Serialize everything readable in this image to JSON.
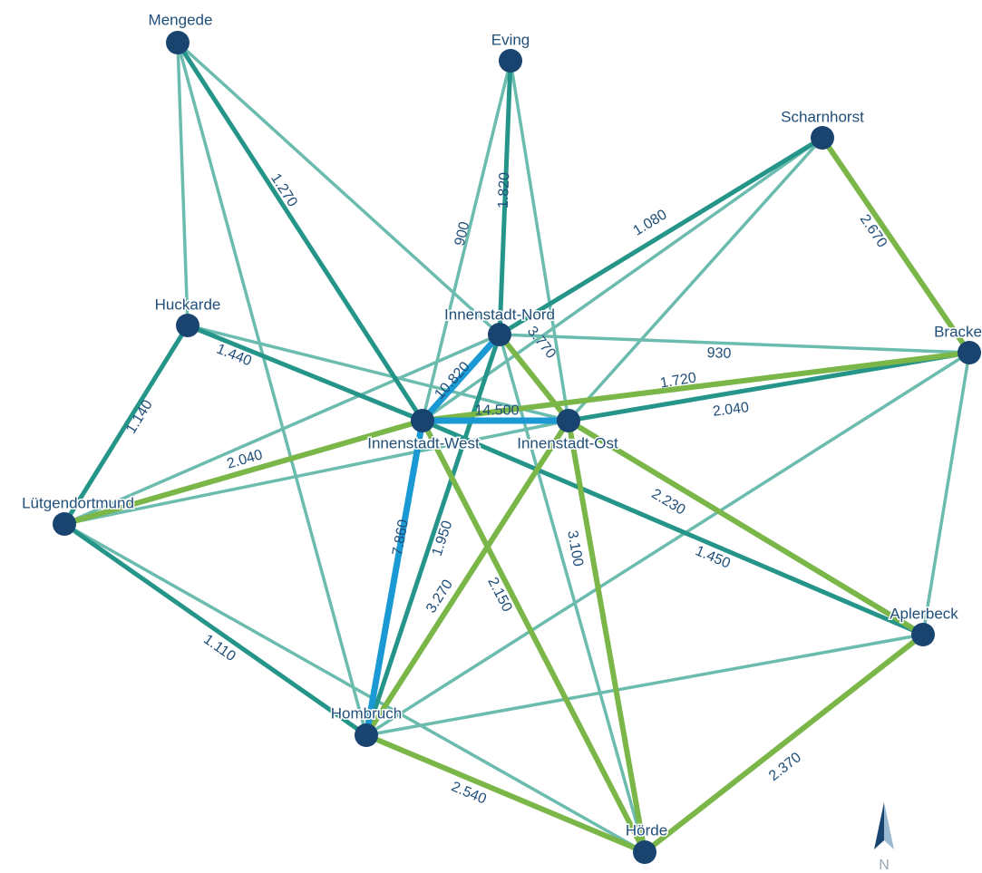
{
  "colors": {
    "node": "#1a4470",
    "label": "#1f4e79",
    "thin": "#6bbcae",
    "medium": "#25958a",
    "green": "#7ab648",
    "blue": "#1a99d4",
    "north_dark": "#1a4470",
    "north_light": "#9bbad1"
  },
  "nodes": [
    {
      "id": "mengede",
      "label": "Mengede"
    },
    {
      "id": "eving",
      "label": "Eving"
    },
    {
      "id": "scharnhorst",
      "label": "Scharnhorst"
    },
    {
      "id": "huckarde",
      "label": "Huckarde"
    },
    {
      "id": "nord",
      "label": "Innenstadt-Nord"
    },
    {
      "id": "bracke",
      "label": "Bracke"
    },
    {
      "id": "west",
      "label": "Innenstadt-West"
    },
    {
      "id": "ost",
      "label": "Innenstadt-Ost"
    },
    {
      "id": "luetgen",
      "label": "Lütgendortmund"
    },
    {
      "id": "aplerbeck",
      "label": "Aplerbeck"
    },
    {
      "id": "hombruch",
      "label": "Hombruch"
    },
    {
      "id": "hoerde",
      "label": "Hörde"
    }
  ],
  "edges": [
    {
      "from": "mengede",
      "to": "west",
      "value": "1.270",
      "style": "medium"
    },
    {
      "from": "eving",
      "to": "nord",
      "value": "1.820",
      "style": "medium"
    },
    {
      "from": "eving",
      "to": "west",
      "value": "900",
      "style": "thin"
    },
    {
      "from": "scharnhorst",
      "to": "nord",
      "value": "1.080",
      "style": "medium"
    },
    {
      "from": "scharnhorst",
      "to": "bracke",
      "value": "2.670",
      "style": "green"
    },
    {
      "from": "huckarde",
      "to": "west",
      "value": "1.440",
      "style": "medium"
    },
    {
      "from": "huckarde",
      "to": "luetgen",
      "value": "1.140",
      "style": "medium"
    },
    {
      "from": "nord",
      "to": "bracke",
      "value": "930",
      "style": "thin"
    },
    {
      "from": "west",
      "to": "nord",
      "value": "10.820",
      "style": "blue"
    },
    {
      "from": "nord",
      "to": "ost",
      "value": "3.770",
      "style": "green"
    },
    {
      "from": "west",
      "to": "ost",
      "value": "14.500",
      "style": "blue"
    },
    {
      "from": "ost",
      "to": "bracke",
      "value": "1.720",
      "style": "medium"
    },
    {
      "from": "west",
      "to": "bracke",
      "value": "2.040",
      "style": "green"
    },
    {
      "from": "luetgen",
      "to": "west",
      "value": "2.040",
      "style": "green"
    },
    {
      "from": "ost",
      "to": "aplerbeck",
      "value": "2.230",
      "style": "green"
    },
    {
      "from": "west",
      "to": "aplerbeck",
      "value": "1.450",
      "style": "medium"
    },
    {
      "from": "hombruch",
      "to": "west",
      "value": "7.860",
      "style": "blue"
    },
    {
      "from": "hombruch",
      "to": "nord",
      "value": "1.950",
      "style": "medium"
    },
    {
      "from": "hombruch",
      "to": "ost",
      "value": "3.270",
      "style": "green"
    },
    {
      "from": "west",
      "to": "hoerde",
      "value": "2.150",
      "style": "green"
    },
    {
      "from": "ost",
      "to": "hoerde",
      "value": "3.100",
      "style": "green"
    },
    {
      "from": "luetgen",
      "to": "hombruch",
      "value": "1.110",
      "style": "medium"
    },
    {
      "from": "hombruch",
      "to": "hoerde",
      "value": "2.540",
      "style": "green"
    },
    {
      "from": "aplerbeck",
      "to": "hoerde",
      "value": "2.370",
      "style": "green"
    },
    {
      "from": "mengede",
      "to": "huckarde",
      "style": "thin"
    },
    {
      "from": "mengede",
      "to": "hombruch",
      "style": "thin"
    },
    {
      "from": "mengede",
      "to": "nord",
      "style": "thin"
    },
    {
      "from": "eving",
      "to": "ost",
      "style": "thin"
    },
    {
      "from": "scharnhorst",
      "to": "ost",
      "style": "thin"
    },
    {
      "from": "scharnhorst",
      "to": "west",
      "style": "thin"
    },
    {
      "from": "huckarde",
      "to": "ost",
      "style": "thin"
    },
    {
      "from": "bracke",
      "to": "aplerbeck",
      "style": "thin"
    },
    {
      "from": "bracke",
      "to": "hombruch",
      "style": "thin"
    },
    {
      "from": "nord",
      "to": "luetgen",
      "style": "thin"
    },
    {
      "from": "nord",
      "to": "hoerde",
      "style": "thin"
    },
    {
      "from": "ost",
      "to": "luetgen",
      "style": "thin"
    },
    {
      "from": "luetgen",
      "to": "hoerde",
      "style": "thin"
    },
    {
      "from": "aplerbeck",
      "to": "hombruch",
      "style": "thin"
    },
    {
      "from": "west",
      "to": "hombruch",
      "style": "thin"
    }
  ],
  "north_arrow": {
    "label": "N",
    "icon": "north-arrow-icon"
  }
}
